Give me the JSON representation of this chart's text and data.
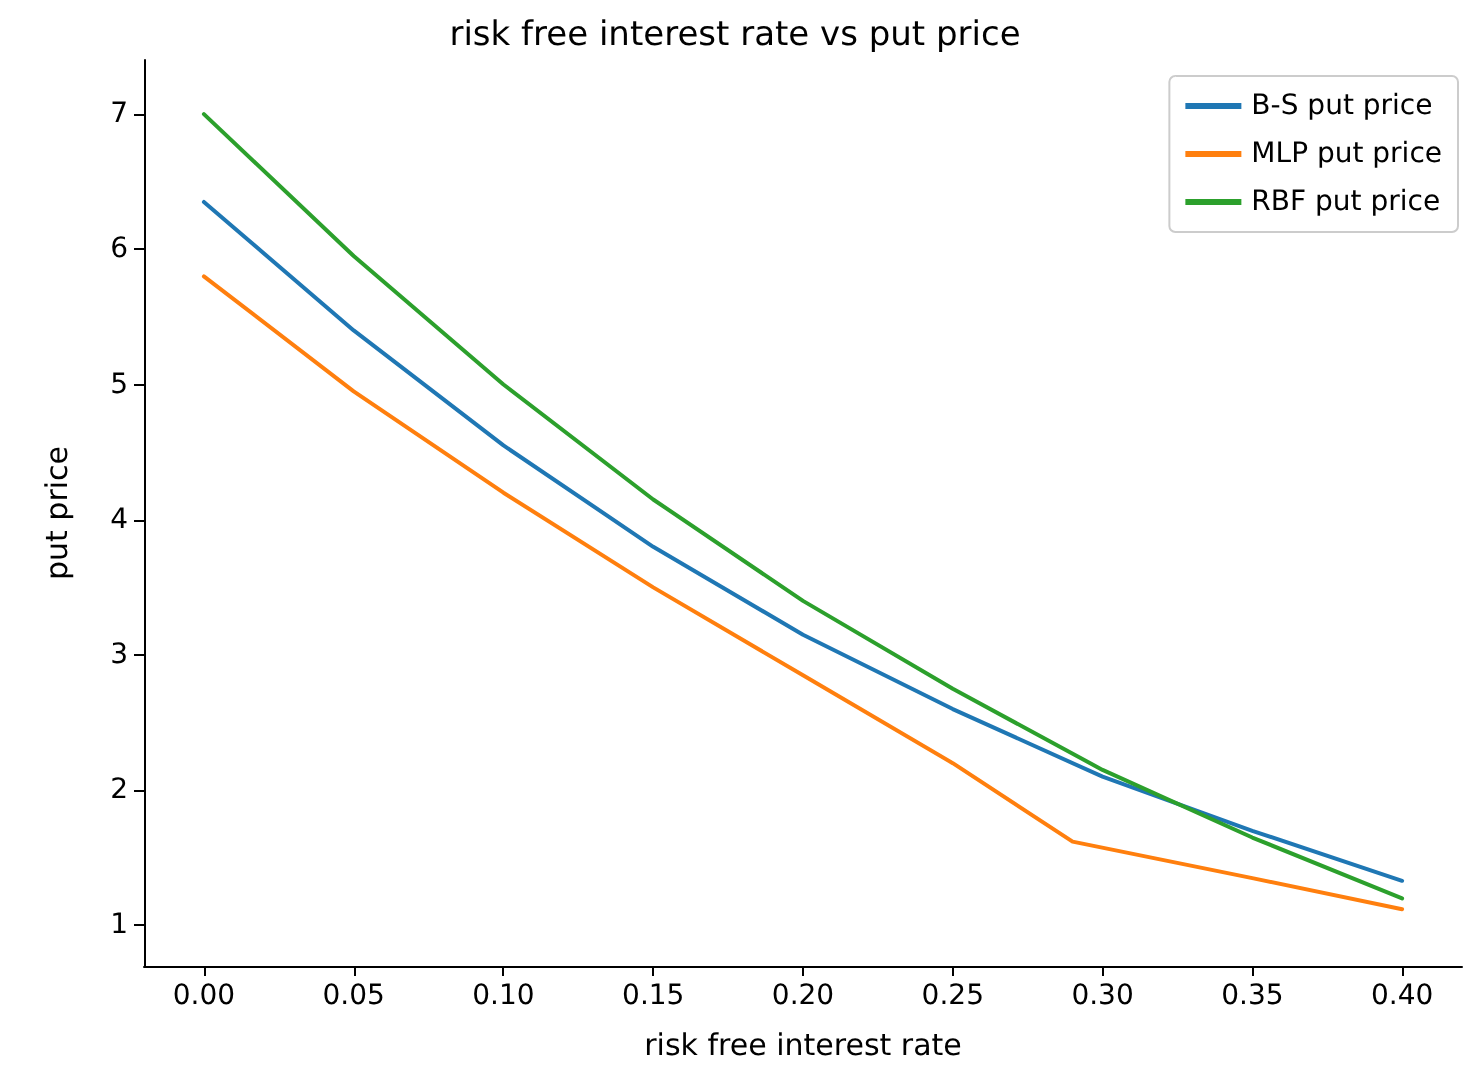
{
  "chart_data": {
    "type": "line",
    "title": "risk free interest rate vs put price",
    "xlabel": "risk free interest rate",
    "ylabel": "put price",
    "xlim": [
      -0.02,
      0.42
    ],
    "ylim": [
      0.7,
      7.4
    ],
    "xticks": [
      {
        "value": 0,
        "label": "0.00"
      },
      {
        "value": 0.05,
        "label": "0.05"
      },
      {
        "value": 0.1,
        "label": "0.10"
      },
      {
        "value": 0.15,
        "label": "0.15"
      },
      {
        "value": 0.2,
        "label": "0.20"
      },
      {
        "value": 0.25,
        "label": "0.25"
      },
      {
        "value": 0.3,
        "label": "0.30"
      },
      {
        "value": 0.35,
        "label": "0.35"
      },
      {
        "value": 0.4,
        "label": "0.40"
      }
    ],
    "yticks": [
      1,
      2,
      3,
      4,
      5,
      6,
      7
    ],
    "grid": false,
    "legend": "top right",
    "marker": "none",
    "line_style": "solid",
    "series": [
      {
        "name": "B-S put price",
        "color": "#1f77b4",
        "x": [
          0,
          0.05,
          0.1,
          0.15,
          0.2,
          0.25,
          0.3,
          0.35,
          0.4
        ],
        "values": [
          6.35,
          5.4,
          4.55,
          3.8,
          3.15,
          2.6,
          2.1,
          1.7,
          1.33
        ]
      },
      {
        "name": "MLP put price",
        "color": "#ff7f0e",
        "x": [
          0,
          0.05,
          0.1,
          0.15,
          0.2,
          0.25,
          0.29,
          0.35,
          0.4
        ],
        "values": [
          5.8,
          4.95,
          4.2,
          3.5,
          2.85,
          2.2,
          1.62,
          1.35,
          1.12
        ]
      },
      {
        "name": "RBF put price",
        "color": "#2ca02c",
        "x": [
          0,
          0.05,
          0.1,
          0.15,
          0.2,
          0.25,
          0.3,
          0.35,
          0.4
        ],
        "values": [
          7.0,
          5.95,
          5.0,
          4.15,
          3.4,
          2.75,
          2.15,
          1.65,
          1.2
        ]
      }
    ]
  }
}
